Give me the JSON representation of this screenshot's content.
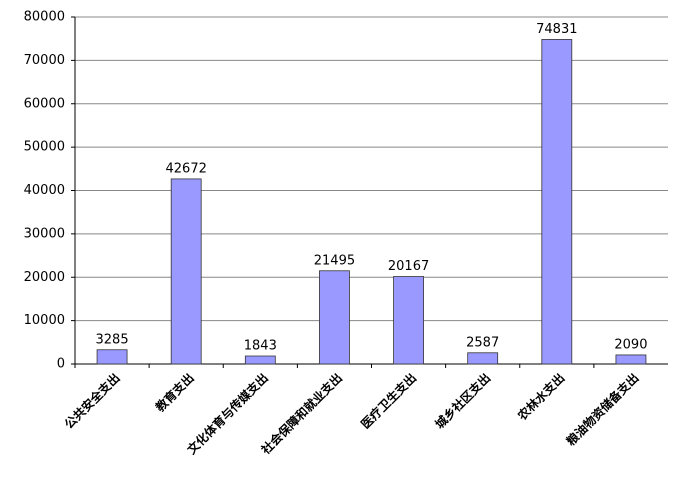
{
  "chart_data": {
    "type": "bar",
    "categories": [
      "公共安全支出",
      "教育支出",
      "文化体育与传媒支出",
      "社会保障和就业支出",
      "医疗卫生支出",
      "城乡社区支出",
      "农林水支出",
      "粮油物资储备支出"
    ],
    "values": [
      3285,
      42672,
      1843,
      21495,
      20167,
      2587,
      74831,
      2090
    ],
    "color": "#9999ff",
    "ylim": [
      0,
      80000
    ],
    "yticks": [
      0,
      10000,
      20000,
      30000,
      40000,
      50000,
      60000,
      70000,
      80000
    ],
    "grid": true
  }
}
